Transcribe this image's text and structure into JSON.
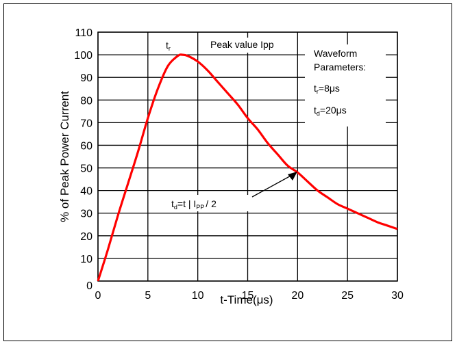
{
  "chart_data": {
    "type": "line",
    "xlabel": "t-Time(μs)",
    "ylabel": "% of Peak Power Current",
    "xlim": [
      0,
      30
    ],
    "ylim": [
      0,
      110
    ],
    "x_ticks": [
      "0",
      "5",
      "10",
      "15",
      "20",
      "25",
      "30"
    ],
    "y_ticks": [
      "0",
      "10",
      "20",
      "30",
      "40",
      "50",
      "60",
      "70",
      "80",
      "90",
      "100",
      "110"
    ],
    "grid": true,
    "series": [
      {
        "color": "#ff0000",
        "x": [
          0,
          1,
          2,
          3,
          4,
          5,
          6,
          7,
          8,
          8.5,
          9,
          10,
          11,
          12,
          13,
          14,
          15,
          16,
          17,
          18,
          19,
          20,
          21,
          22,
          23,
          24,
          25,
          26,
          27,
          28,
          29,
          30
        ],
        "y": [
          0,
          14,
          29,
          43,
          57,
          72,
          85,
          95,
          99.5,
          100,
          99.5,
          97,
          93,
          88,
          83,
          78,
          72,
          67,
          61,
          56,
          51,
          48,
          44,
          40,
          37,
          34,
          32,
          30,
          28,
          26,
          24.5,
          23
        ]
      }
    ],
    "annotations": {
      "tr_label": "t",
      "tr_sub": "r",
      "peak_label": "Peak value Ipp",
      "params_line1": "Waveform",
      "params_line2": "Parameters:",
      "tr_param_main": "t",
      "tr_param_sub": "r",
      "tr_param_value": "=8μs",
      "td_param_main": "t",
      "td_param_sub": "d",
      "td_param_value": "=20μs",
      "td_anno_main": "t",
      "td_anno_sub": "d",
      "td_anno_mid": "=t | I",
      "td_anno_sub2": "PP",
      "td_anno_end": "/ 2"
    }
  }
}
